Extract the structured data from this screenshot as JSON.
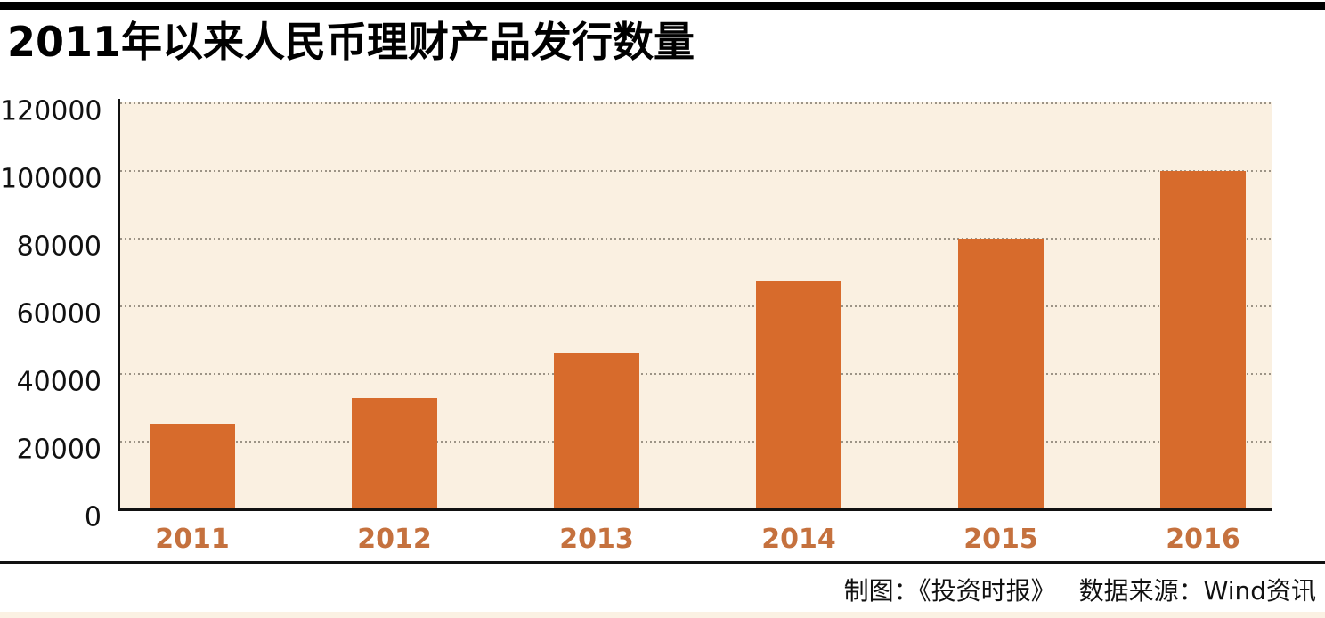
{
  "title": "2011年以来人民币理财产品发行数量",
  "footer": {
    "credit": "制图：《投资时报》",
    "source": "数据来源：Wind资讯"
  },
  "colors": {
    "bar": "#D76B2C",
    "plot_background": "#FAF0E1",
    "x_label": "#C5713E",
    "gridline": "#8B8376",
    "axis_and_text": "#111111",
    "bottom_strip": "#FBF1E3"
  },
  "chart_data": {
    "type": "bar",
    "title": "2011年以来人民币理财产品发行数量",
    "categories": [
      "2011",
      "2012",
      "2013",
      "2014",
      "2015",
      "2016"
    ],
    "values": [
      25000,
      32500,
      46000,
      67000,
      79800,
      99700
    ],
    "xlabel": "",
    "ylabel": "",
    "ylim": [
      0,
      120000
    ],
    "yticks": [
      0,
      20000,
      40000,
      60000,
      80000,
      100000,
      120000
    ],
    "ytick_labels": [
      "0",
      "20000",
      "40000",
      "60000",
      "80000",
      "100000",
      "120000"
    ],
    "grid": "horizontal-dotted",
    "legend": "none",
    "source_note": "数据来源：Wind资讯",
    "credit_note": "制图：《投资时报》"
  }
}
